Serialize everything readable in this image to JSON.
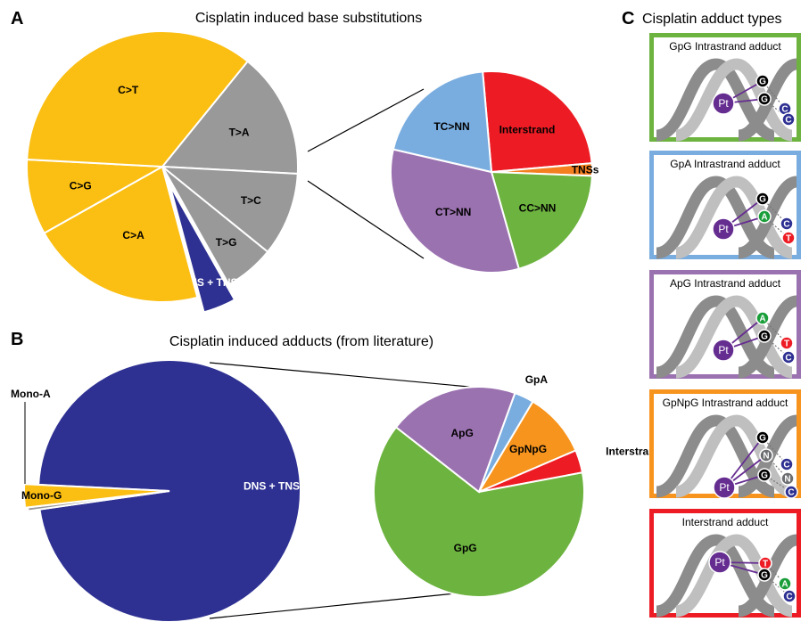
{
  "panels": {
    "a": {
      "letter": "A",
      "title": "Cisplatin induced base substitutions"
    },
    "b": {
      "letter": "B",
      "title": "Cisplatin induced adducts (from literature)"
    },
    "c": {
      "letter": "C",
      "title": "Cisplatin adduct types"
    }
  },
  "chart_data": [
    {
      "type": "pie",
      "title": "Cisplatin induced base substitutions",
      "slices": [
        {
          "label": "T>A",
          "value": 15,
          "color": "#999999"
        },
        {
          "label": "T>C",
          "value": 10,
          "color": "#999999"
        },
        {
          "label": "T>G",
          "value": 6,
          "color": "#999999"
        },
        {
          "label": "DNS + TNS",
          "value": 4,
          "color": "#2e3192"
        },
        {
          "label": "C>A",
          "value": 21,
          "color": "#fbbe12"
        },
        {
          "label": "C>G",
          "value": 9,
          "color": "#fbbe12"
        },
        {
          "label": "C>T",
          "value": 35,
          "color": "#fbbe12"
        }
      ]
    },
    {
      "type": "pie",
      "title": "",
      "slices": [
        {
          "label": "Interstrand",
          "value": 25,
          "color": "#ed1c24"
        },
        {
          "label": "TNSs",
          "value": 2,
          "color": "#f47f20"
        },
        {
          "label": "CC>NN",
          "value": 20,
          "color": "#6db33f"
        },
        {
          "label": "CT>NN",
          "value": 33,
          "color": "#9b72b0"
        },
        {
          "label": "TC>NN",
          "value": 20,
          "color": "#7aaddf"
        }
      ]
    },
    {
      "type": "pie",
      "title": "Cisplatin induced adducts (from literature)",
      "slices": [
        {
          "label": "DNS + TNS",
          "value": 97,
          "color": "#2e3192"
        },
        {
          "label": "Mono-A",
          "value": 0.4,
          "color": "#999999"
        },
        {
          "label": "Mono-G",
          "value": 2.6,
          "color": "#fbbe12"
        }
      ]
    },
    {
      "type": "pie",
      "title": "",
      "slices": [
        {
          "label": "GpA",
          "value": 3,
          "color": "#7aaddf"
        },
        {
          "label": "GpNpG",
          "value": 10,
          "color": "#f7941d"
        },
        {
          "label": "Interstrand",
          "value": 3.5,
          "color": "#ed1c24"
        },
        {
          "label": "GpG",
          "value": 63.5,
          "color": "#6db33f"
        },
        {
          "label": "ApG",
          "value": 20,
          "color": "#9b72b0"
        }
      ]
    }
  ],
  "adduct_types": [
    {
      "title": "GpG Intrastrand adduct",
      "border_color": "#6db33f",
      "pt": "Pt",
      "bases": [
        {
          "letter": "G",
          "color": "#000000"
        },
        {
          "letter": "C",
          "color": "#2e3192"
        },
        {
          "letter": "G",
          "color": "#000000"
        },
        {
          "letter": "C",
          "color": "#2e3192"
        }
      ]
    },
    {
      "title": "GpA Intrastrand adduct",
      "border_color": "#7aaddf",
      "pt": "Pt",
      "bases": [
        {
          "letter": "G",
          "color": "#000000"
        },
        {
          "letter": "C",
          "color": "#2e3192"
        },
        {
          "letter": "A",
          "color": "#1a9e3a"
        },
        {
          "letter": "T",
          "color": "#ed1c24"
        }
      ]
    },
    {
      "title": "ApG Intrastrand adduct",
      "border_color": "#9b72b0",
      "pt": "Pt",
      "bases": [
        {
          "letter": "A",
          "color": "#1a9e3a"
        },
        {
          "letter": "T",
          "color": "#ed1c24"
        },
        {
          "letter": "G",
          "color": "#000000"
        },
        {
          "letter": "C",
          "color": "#2e3192"
        }
      ]
    },
    {
      "title": "GpNpG Intrastrand adduct",
      "border_color": "#f7941d",
      "pt": "Pt",
      "bases": [
        {
          "letter": "G",
          "color": "#000000"
        },
        {
          "letter": "C",
          "color": "#2e3192"
        },
        {
          "letter": "N",
          "color": "#6d6e71"
        },
        {
          "letter": "N",
          "color": "#6d6e71"
        },
        {
          "letter": "G",
          "color": "#000000"
        },
        {
          "letter": "C",
          "color": "#2e3192"
        }
      ]
    },
    {
      "title": "Interstrand adduct",
      "border_color": "#ed1c24",
      "pt": "Pt",
      "bases": [
        {
          "letter": "T",
          "color": "#ed1c24"
        },
        {
          "letter": "A",
          "color": "#1a9e3a"
        },
        {
          "letter": "G",
          "color": "#000000"
        },
        {
          "letter": "C",
          "color": "#2e3192"
        }
      ]
    }
  ]
}
